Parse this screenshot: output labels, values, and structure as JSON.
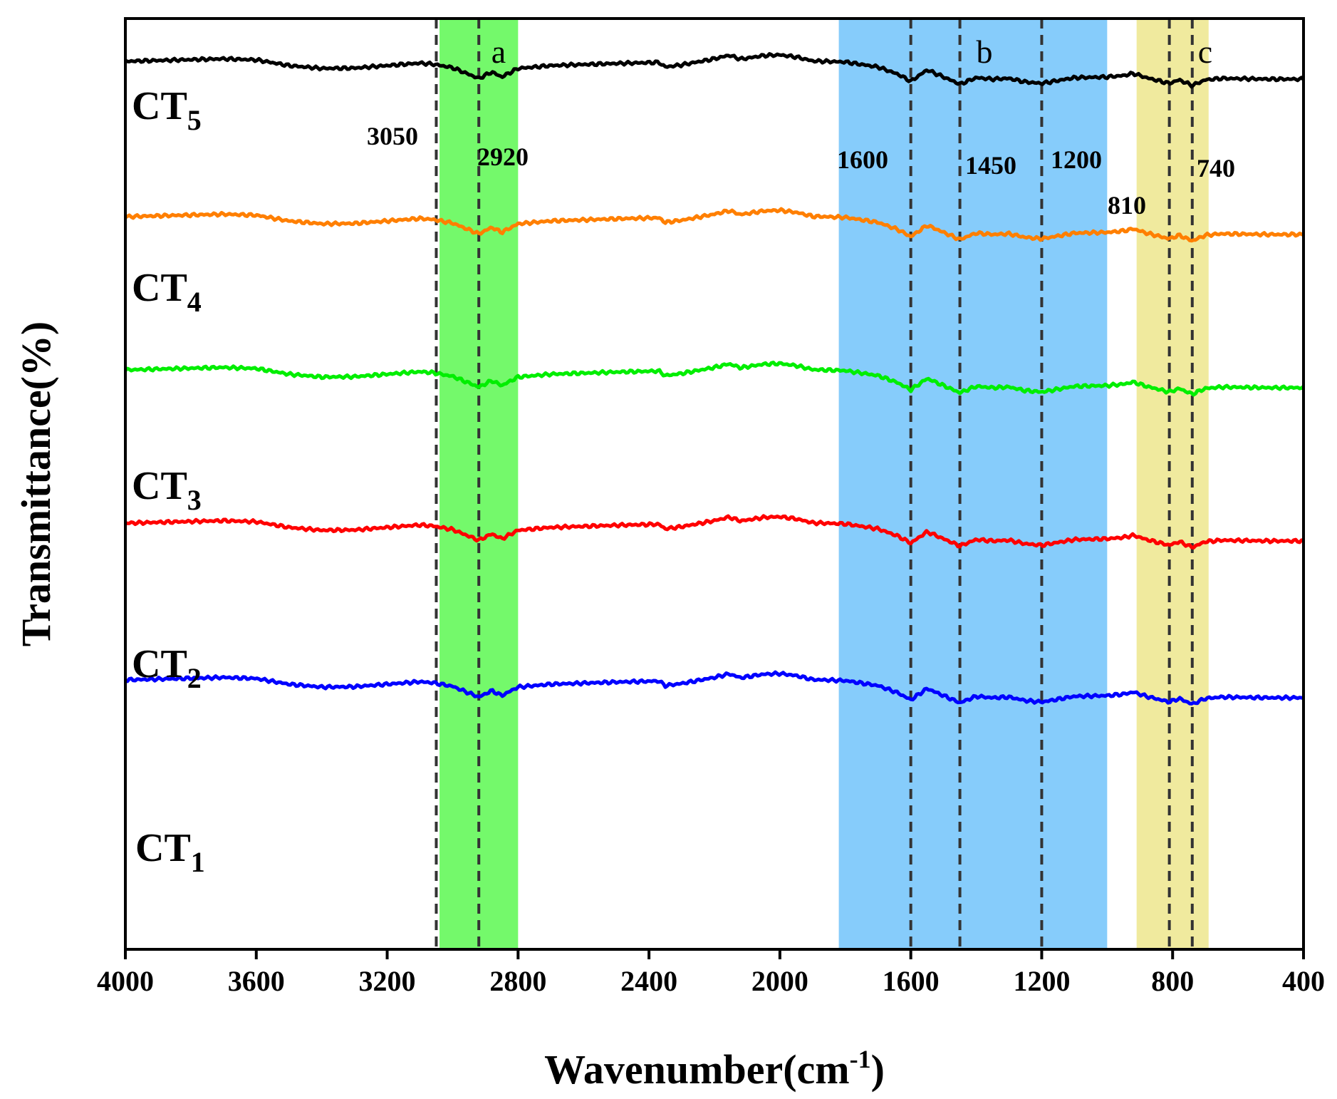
{
  "chart_data": {
    "type": "line",
    "title": "",
    "xlabel": "Wavenumber(cm",
    "xlabel_sup": "-1",
    "xlabel_close": ")",
    "ylabel": "Transmittance(%)",
    "xlim": [
      4000,
      400
    ],
    "x_reversed": true,
    "xticks": [
      4000,
      3600,
      3200,
      2800,
      2400,
      2000,
      1600,
      1200,
      800,
      400
    ],
    "yticks": [],
    "grid": false,
    "legend": "none",
    "regions": [
      {
        "label": "a",
        "from": 3040,
        "to": 2800,
        "color": "#74F96B"
      },
      {
        "label": "b",
        "from": 1820,
        "to": 1000,
        "color": "#86CCFB"
      },
      {
        "label": "c",
        "from": 910,
        "to": 690,
        "color": "#F0EA9E"
      }
    ],
    "reference_lines": [
      3050,
      2920,
      1600,
      1450,
      1200,
      810,
      740
    ],
    "peak_labels": [
      "3050",
      "2920",
      "1600",
      "1450",
      "1200",
      "810",
      "740"
    ],
    "baseline_points": [
      [
        4000,
        0.0
      ],
      [
        3700,
        -3.5
      ],
      [
        3600,
        -2.0
      ],
      [
        3500,
        6.0
      ],
      [
        3400,
        10.0
      ],
      [
        3300,
        9.5
      ],
      [
        3200,
        6.0
      ],
      [
        3100,
        2.5
      ],
      [
        3060,
        4.0
      ],
      [
        3000,
        9.0
      ],
      [
        2920,
        24.0
      ],
      [
        2880,
        15.0
      ],
      [
        2850,
        22.0
      ],
      [
        2800,
        10.0
      ],
      [
        2700,
        6.0
      ],
      [
        2600,
        4.5
      ],
      [
        2500,
        3.0
      ],
      [
        2370,
        1.5
      ],
      [
        2350,
        8.0
      ],
      [
        2300,
        5.0
      ],
      [
        2200,
        -3.5
      ],
      [
        2155,
        -8.5
      ],
      [
        2120,
        -3.0
      ],
      [
        2050,
        -8.0
      ],
      [
        2000,
        -9.0
      ],
      [
        1950,
        -6.0
      ],
      [
        1900,
        -0.5
      ],
      [
        1800,
        1.0
      ],
      [
        1700,
        8.0
      ],
      [
        1640,
        18.0
      ],
      [
        1600,
        28.0
      ],
      [
        1550,
        12.0
      ],
      [
        1510,
        20.0
      ],
      [
        1450,
        32.0
      ],
      [
        1400,
        23.0
      ],
      [
        1350,
        25.0
      ],
      [
        1300,
        24.0
      ],
      [
        1250,
        29.0
      ],
      [
        1200,
        31.0
      ],
      [
        1100,
        23.0
      ],
      [
        1000,
        22.0
      ],
      [
        950,
        20.0
      ],
      [
        920,
        17.0
      ],
      [
        880,
        23.0
      ],
      [
        810,
        31.0
      ],
      [
        780,
        26.0
      ],
      [
        740,
        34.0
      ],
      [
        700,
        26.0
      ],
      [
        650,
        24.0
      ],
      [
        500,
        25.0
      ],
      [
        400,
        25.0
      ]
    ],
    "series": [
      {
        "name": "CT",
        "sub": "5",
        "color": "#000000",
        "offset": 0
      },
      {
        "name": "CT",
        "sub": "4",
        "color": "#FF7F00",
        "offset": 218
      },
      {
        "name": "CT",
        "sub": "3",
        "color": "#00EE00",
        "offset": 433
      },
      {
        "name": "CT",
        "sub": "2",
        "color": "#FF0000",
        "offset": 648
      },
      {
        "name": "CT",
        "sub": "1",
        "color": "#0000FF",
        "offset": 868
      }
    ]
  }
}
